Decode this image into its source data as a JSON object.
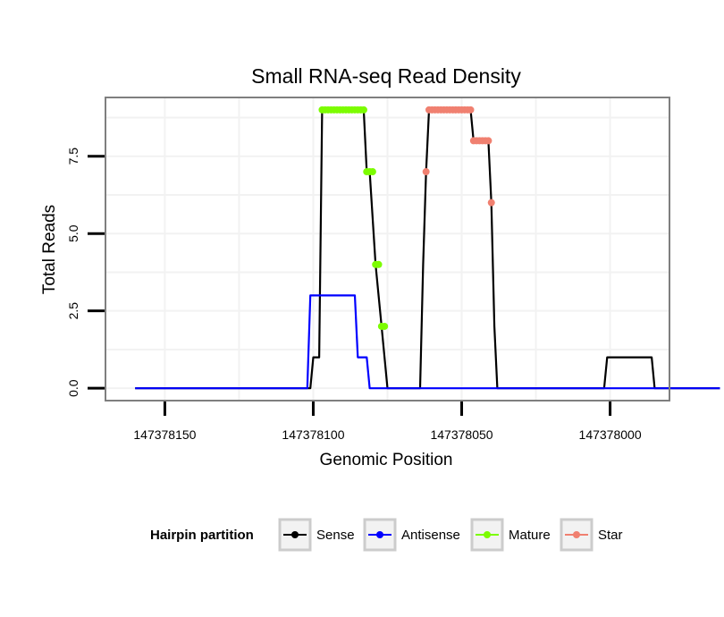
{
  "chart_data": {
    "type": "line",
    "title": "Small RNA-seq Read Density",
    "xlabel": "Genomic Position",
    "ylabel": "Total Reads",
    "x_reversed": true,
    "xlim": [
      147378170,
      147377980
    ],
    "ylim": [
      -0.4,
      9.4
    ],
    "x_ticks": [
      147378150,
      147378100,
      147378050,
      147378000
    ],
    "x_tick_labels": [
      "147378150",
      "147378100",
      "147378050",
      "147378000"
    ],
    "y_ticks": [
      0,
      2.5,
      5,
      7.5
    ],
    "y_tick_labels": [
      "0.0",
      "2.5",
      "5.0",
      "7.5"
    ],
    "legend": {
      "title": "Hairpin partition",
      "position": "bottom",
      "entries": [
        "Sense",
        "Antisense",
        "Mature",
        "Star"
      ]
    },
    "series": [
      {
        "name": "Sense",
        "color": "#000000",
        "style": "line",
        "points": [
          [
            147378160,
            0
          ],
          [
            147378101,
            0
          ],
          [
            147378100,
            1
          ],
          [
            147378098,
            1
          ],
          [
            147378097,
            9
          ],
          [
            147378083,
            9
          ],
          [
            147378082,
            7
          ],
          [
            147378081,
            7
          ],
          [
            147378079,
            4
          ],
          [
            147378077,
            2
          ],
          [
            147378075,
            0
          ],
          [
            147378064,
            0
          ],
          [
            147378063,
            4
          ],
          [
            147378062,
            7
          ],
          [
            147378061,
            9
          ],
          [
            147378047,
            9
          ],
          [
            147378046,
            8
          ],
          [
            147378041,
            8
          ],
          [
            147378040,
            6
          ],
          [
            147378039,
            2
          ],
          [
            147378038,
            0
          ],
          [
            147378002,
            0
          ],
          [
            147378001,
            1
          ],
          [
            147377986,
            1
          ],
          [
            147377985,
            0
          ],
          [
            147377963,
            0
          ]
        ]
      },
      {
        "name": "Antisense",
        "color": "#0000ff",
        "style": "line",
        "points": [
          [
            147378160,
            0
          ],
          [
            147378102,
            0
          ],
          [
            147378101,
            3
          ],
          [
            147378086,
            3
          ],
          [
            147378085,
            1
          ],
          [
            147378082,
            1
          ],
          [
            147378081,
            0
          ],
          [
            147377963,
            0
          ]
        ]
      },
      {
        "name": "Mature",
        "color": "#7cfc00",
        "style": "points",
        "points": [
          [
            147378097,
            9
          ],
          [
            147378096,
            9
          ],
          [
            147378095,
            9
          ],
          [
            147378094,
            9
          ],
          [
            147378093,
            9
          ],
          [
            147378092,
            9
          ],
          [
            147378091,
            9
          ],
          [
            147378090,
            9
          ],
          [
            147378089,
            9
          ],
          [
            147378088,
            9
          ],
          [
            147378087,
            9
          ],
          [
            147378086,
            9
          ],
          [
            147378085,
            9
          ],
          [
            147378084,
            9
          ],
          [
            147378083,
            9
          ],
          [
            147378082,
            7
          ],
          [
            147378081,
            7
          ],
          [
            147378080,
            7
          ],
          [
            147378079,
            4
          ],
          [
            147378078,
            4
          ],
          [
            147378077,
            2
          ],
          [
            147378076,
            2
          ]
        ]
      },
      {
        "name": "Star",
        "color": "#f08070",
        "style": "points",
        "points": [
          [
            147378062,
            7
          ],
          [
            147378061,
            9
          ],
          [
            147378060,
            9
          ],
          [
            147378059,
            9
          ],
          [
            147378058,
            9
          ],
          [
            147378057,
            9
          ],
          [
            147378056,
            9
          ],
          [
            147378055,
            9
          ],
          [
            147378054,
            9
          ],
          [
            147378053,
            9
          ],
          [
            147378052,
            9
          ],
          [
            147378051,
            9
          ],
          [
            147378050,
            9
          ],
          [
            147378049,
            9
          ],
          [
            147378048,
            9
          ],
          [
            147378047,
            9
          ],
          [
            147378046,
            8
          ],
          [
            147378045,
            8
          ],
          [
            147378044,
            8
          ],
          [
            147378043,
            8
          ],
          [
            147378042,
            8
          ],
          [
            147378041,
            8
          ],
          [
            147378040,
            6
          ]
        ]
      }
    ]
  }
}
